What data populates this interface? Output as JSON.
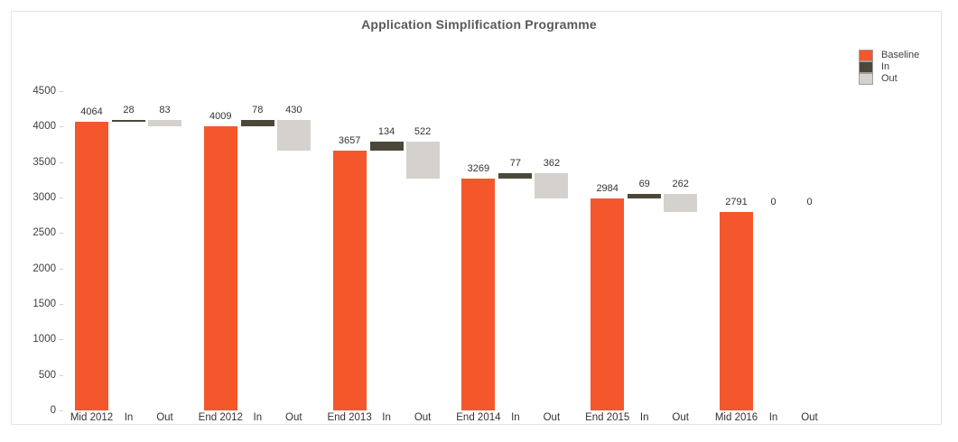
{
  "title": "Application Simplification Programme",
  "legend": [
    {
      "label": "Baseline",
      "color": "#F4572B"
    },
    {
      "label": "In",
      "color": "#4B483A"
    },
    {
      "label": "Out",
      "color": "#D5D1CC"
    }
  ],
  "chart_data": {
    "type": "bar",
    "subtype": "grouped-waterfall",
    "title": "Application Simplification Programme",
    "xlabel": "",
    "ylabel": "",
    "ylim": [
      0,
      4500
    ],
    "y_ticks": [
      0,
      500,
      1000,
      1500,
      2000,
      2500,
      3000,
      3500,
      4000,
      4500
    ],
    "grid": false,
    "legend_position": "top-right",
    "legend_entries": [
      "Baseline",
      "In",
      "Out"
    ],
    "colors": {
      "baseline": "#F4572B",
      "in": "#4B483A",
      "out": "#D5D1CC"
    },
    "sub_labels": [
      "In",
      "Out"
    ],
    "waterfall_rule": "in bar floats from baseline to baseline+in; out bar floats from baseline+in down by out (equals next baseline)",
    "groups": [
      {
        "label": "Mid 2012",
        "baseline": 4064,
        "in": 28,
        "out": 83
      },
      {
        "label": "End 2012",
        "baseline": 4009,
        "in": 78,
        "out": 430
      },
      {
        "label": "End 2013",
        "baseline": 3657,
        "in": 134,
        "out": 522
      },
      {
        "label": "End 2014",
        "baseline": 3269,
        "in": 77,
        "out": 362
      },
      {
        "label": "End 2015",
        "baseline": 2984,
        "in": 69,
        "out": 262
      },
      {
        "label": "Mid 2016",
        "baseline": 2791,
        "in": 0,
        "out": 0
      }
    ]
  }
}
